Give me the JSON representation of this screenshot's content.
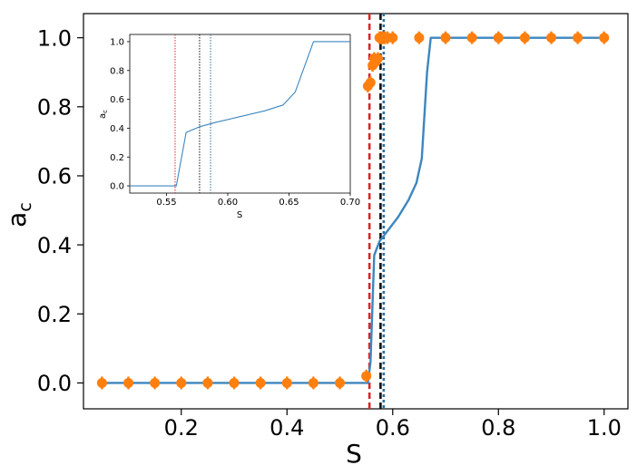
{
  "chart_data": [
    {
      "type": "line",
      "panel": "main",
      "xlabel": "S",
      "ylabel_main": "a",
      "ylabel_sub": "c",
      "xlim": [
        0.015,
        1.045
      ],
      "ylim": [
        -0.075,
        1.07
      ],
      "xticks": [
        "0.2",
        "0.4",
        "0.6",
        "0.8",
        "1.0"
      ],
      "xtick_values": [
        0.2,
        0.4,
        0.6,
        0.8,
        1.0
      ],
      "yticks": [
        "0.0",
        "0.2",
        "0.4",
        "0.6",
        "0.8",
        "1.0"
      ],
      "ytick_values": [
        0.0,
        0.2,
        0.4,
        0.6,
        0.8,
        1.0
      ],
      "grid": false,
      "series": [
        {
          "kind": "line",
          "color": "#3d86bf",
          "x": [
            0.05,
            0.5,
            0.553,
            0.558,
            0.565,
            0.575,
            0.59,
            0.61,
            0.63,
            0.645,
            0.655,
            0.665,
            0.672,
            1.0
          ],
          "y": [
            0.0,
            0.0,
            0.0,
            0.06,
            0.37,
            0.41,
            0.44,
            0.48,
            0.53,
            0.58,
            0.65,
            0.9,
            1.0,
            1.0
          ]
        },
        {
          "kind": "scatter",
          "color": "#ff7f0e",
          "x": [
            0.05,
            0.1,
            0.15,
            0.2,
            0.25,
            0.3,
            0.35,
            0.4,
            0.45,
            0.5,
            0.55,
            0.553,
            0.558,
            0.562,
            0.565,
            0.568,
            0.572,
            0.575,
            0.578,
            0.58,
            0.585,
            0.59,
            0.6,
            0.65,
            0.7,
            0.75,
            0.8,
            0.85,
            0.9,
            0.95,
            1.0
          ],
          "y": [
            0.0,
            0.0,
            0.0,
            0.0,
            0.0,
            0.0,
            0.0,
            0.0,
            0.0,
            0.0,
            0.02,
            0.86,
            0.87,
            0.92,
            0.94,
            0.93,
            0.94,
            1.0,
            1.0,
            1.0,
            1.0,
            1.0,
            1.0,
            1.0,
            1.0,
            1.0,
            1.0,
            1.0,
            1.0,
            1.0,
            1.0
          ]
        }
      ],
      "vlines": [
        {
          "x": 0.556,
          "color": "#d62728",
          "style": "dashed"
        },
        {
          "x": 0.577,
          "color": "#111111",
          "style": "dashed"
        },
        {
          "x": 0.583,
          "color": "#2a6fa3",
          "style": "dotted"
        }
      ]
    },
    {
      "type": "line",
      "panel": "inset",
      "xlabel": "S",
      "ylabel_main": "a",
      "ylabel_sub": "c",
      "xlim": [
        0.52,
        0.7
      ],
      "ylim": [
        -0.05,
        1.05
      ],
      "xticks": [
        "0.55",
        "0.60",
        "0.65",
        "0.70"
      ],
      "xtick_values": [
        0.55,
        0.6,
        0.65,
        0.7
      ],
      "yticks": [
        "0.0",
        "0.2",
        "0.4",
        "0.6",
        "0.8",
        "1.0"
      ],
      "ytick_values": [
        0.0,
        0.2,
        0.4,
        0.6,
        0.8,
        1.0
      ],
      "grid": false,
      "series": [
        {
          "kind": "line",
          "color": "#3d86bf",
          "x": [
            0.52,
            0.558,
            0.566,
            0.577,
            0.59,
            0.61,
            0.63,
            0.645,
            0.655,
            0.67,
            0.7
          ],
          "y": [
            0.0,
            0.0,
            0.37,
            0.41,
            0.44,
            0.48,
            0.52,
            0.56,
            0.65,
            1.0,
            1.0
          ]
        }
      ],
      "vlines": [
        {
          "x": 0.557,
          "color": "#d62728",
          "style": "dotted"
        },
        {
          "x": 0.577,
          "color": "#111111",
          "style": "dotted"
        },
        {
          "x": 0.586,
          "color": "#2a6fa3",
          "style": "dotted"
        }
      ]
    }
  ]
}
